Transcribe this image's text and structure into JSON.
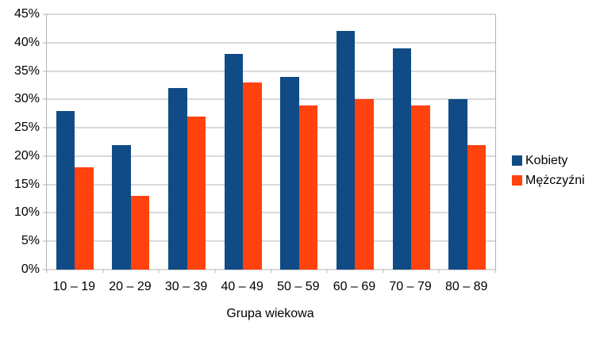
{
  "chart_data": {
    "type": "bar",
    "categories": [
      "10 – 19",
      "20 – 29",
      "30 – 39",
      "40 – 49",
      "50 – 59",
      "60 – 69",
      "70 – 79",
      "80 – 89"
    ],
    "series": [
      {
        "name": "Kobiety",
        "color": "#114b86",
        "values": [
          28,
          22,
          32,
          38,
          34,
          42,
          39,
          30
        ]
      },
      {
        "name": "Mężczyźni",
        "color": "#ff420e",
        "values": [
          18,
          13,
          27,
          33,
          29,
          30,
          29,
          22
        ]
      }
    ],
    "xlabel": "Grupa wiekowa",
    "ylim": [
      0,
      45
    ],
    "ytick_step": 5,
    "ytick_suffix": "%",
    "grid": true,
    "legend_position": "right",
    "gridline_color": "#b3b3b3",
    "background_color": "#ffffff",
    "text_color": "#000000"
  }
}
